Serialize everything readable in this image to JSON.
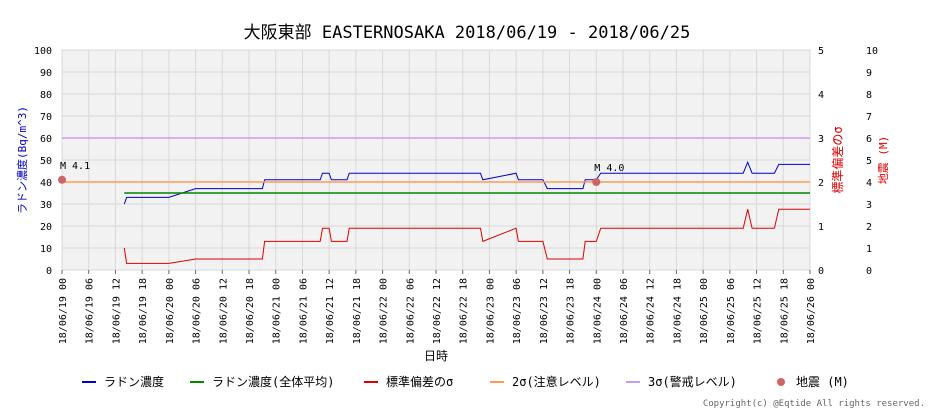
{
  "chart_data": {
    "type": "line",
    "title": "大阪東部 EASTERNOSAKA 2018/06/19 - 2018/06/25",
    "xlabel": "日時",
    "ylabel_left": "ラドン濃度(Bq/m^3)",
    "ylabel_right1": "標準偏差のσ",
    "ylabel_right2": "地震 (M)",
    "ylim_left": [
      0,
      100
    ],
    "ylim_right1": [
      0,
      5
    ],
    "ylim_right2": [
      0,
      10
    ],
    "yticks_left": [
      "0",
      "10",
      "20",
      "30",
      "40",
      "50",
      "60",
      "70",
      "80",
      "90",
      "100"
    ],
    "yticks_right1": [
      "0",
      "1",
      "2",
      "3",
      "4",
      "5"
    ],
    "yticks_right2": [
      "0",
      "1",
      "2",
      "3",
      "4",
      "5",
      "6",
      "7",
      "8",
      "9",
      "10"
    ],
    "xlim_hours": [
      0,
      168
    ],
    "x_ticks": [
      "18/06/19 00",
      "18/06/19 06",
      "18/06/19 12",
      "18/06/19 18",
      "18/06/20 00",
      "18/06/20 06",
      "18/06/20 12",
      "18/06/20 18",
      "18/06/21 00",
      "18/06/21 06",
      "18/06/21 12",
      "18/06/21 18",
      "18/06/22 00",
      "18/06/22 06",
      "18/06/22 12",
      "18/06/22 18",
      "18/06/23 00",
      "18/06/23 06",
      "18/06/23 12",
      "18/06/23 18",
      "18/06/24 00",
      "18/06/24 06",
      "18/06/24 12",
      "18/06/24 18",
      "18/06/25 00",
      "18/06/25 06",
      "18/06/25 12",
      "18/06/25 18",
      "18/06/26 00"
    ],
    "grid": true,
    "legend_position": "bottom",
    "series": [
      {
        "name": "ラドン濃度",
        "color": "#0000cc",
        "axis": "left",
        "points": [
          [
            14,
            30
          ],
          [
            14.5,
            33
          ],
          [
            24,
            33
          ],
          [
            27,
            35
          ],
          [
            30,
            37
          ],
          [
            45,
            37
          ],
          [
            45.5,
            41
          ],
          [
            58,
            41
          ],
          [
            58.5,
            44
          ],
          [
            60,
            44
          ],
          [
            60.5,
            41
          ],
          [
            64,
            41
          ],
          [
            64.5,
            44
          ],
          [
            94,
            44
          ],
          [
            94.5,
            41
          ],
          [
            102,
            44
          ],
          [
            102.5,
            41
          ],
          [
            108,
            41
          ],
          [
            109,
            37
          ],
          [
            117,
            37
          ],
          [
            117.5,
            41
          ],
          [
            120,
            41
          ],
          [
            121,
            44
          ],
          [
            153,
            44
          ],
          [
            154,
            49
          ],
          [
            155,
            44
          ],
          [
            160,
            44
          ],
          [
            161,
            48
          ],
          [
            168,
            48
          ]
        ]
      },
      {
        "name": "ラドン濃度(全体平均)",
        "color": "#008800",
        "axis": "left",
        "points": [
          [
            14,
            35
          ],
          [
            168,
            35
          ]
        ]
      },
      {
        "name": "標準偏差のσ",
        "color": "#dd0000",
        "axis": "right1",
        "points": [
          [
            14,
            0.5
          ],
          [
            14.5,
            0.15
          ],
          [
            24,
            0.15
          ],
          [
            27,
            0.2
          ],
          [
            30,
            0.25
          ],
          [
            45,
            0.25
          ],
          [
            45.5,
            0.65
          ],
          [
            58,
            0.65
          ],
          [
            58.5,
            0.95
          ],
          [
            60,
            0.95
          ],
          [
            60.5,
            0.65
          ],
          [
            64,
            0.65
          ],
          [
            64.5,
            0.95
          ],
          [
            94,
            0.95
          ],
          [
            94.5,
            0.65
          ],
          [
            102,
            0.95
          ],
          [
            102.5,
            0.65
          ],
          [
            108,
            0.65
          ],
          [
            109,
            0.25
          ],
          [
            117,
            0.25
          ],
          [
            117.5,
            0.65
          ],
          [
            120,
            0.65
          ],
          [
            121,
            0.95
          ],
          [
            153,
            0.95
          ],
          [
            154,
            1.38
          ],
          [
            155,
            0.95
          ],
          [
            160,
            0.95
          ],
          [
            161,
            1.38
          ],
          [
            168,
            1.38
          ]
        ]
      },
      {
        "name": "2σ(注意レベル)",
        "color": "#ff9955",
        "axis": "left",
        "points": [
          [
            0,
            40
          ],
          [
            168,
            40
          ]
        ]
      },
      {
        "name": "3σ(警戒レベル)",
        "color": "#cc99ee",
        "axis": "left",
        "points": [
          [
            0,
            60
          ],
          [
            168,
            60
          ]
        ]
      }
    ],
    "earthquakes": {
      "name": "地震 (M)",
      "color": "#cc6666",
      "points": [
        {
          "x": 0,
          "m": 4.1,
          "label": "M 4.1"
        },
        {
          "x": 120,
          "m": 4.0,
          "label": "M 4.0"
        }
      ]
    }
  },
  "copyright": "Copyright(c) @Eqtide All rights reserved."
}
